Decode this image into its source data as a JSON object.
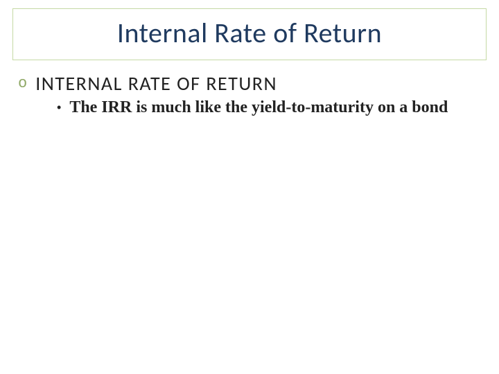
{
  "slide": {
    "title": "Internal Rate of Return",
    "title_color": "#1f3a5f",
    "title_fontsize": 40,
    "title_border_color": "#c5d9a5",
    "background_color": "#ffffff",
    "bullets": {
      "level1": {
        "marker": "o",
        "marker_color": "#8fa866",
        "text": "INTERNAL RATE OF RETURN",
        "fontsize": 28,
        "color": "#222222",
        "font_family": "Calibri"
      },
      "level2": {
        "marker": "•",
        "marker_color": "#222222",
        "text": "The IRR is much like the yield-to-maturity on a bond",
        "fontsize": 24,
        "color": "#222222",
        "font_family": "Times New Roman",
        "font_weight": "bold"
      }
    }
  }
}
